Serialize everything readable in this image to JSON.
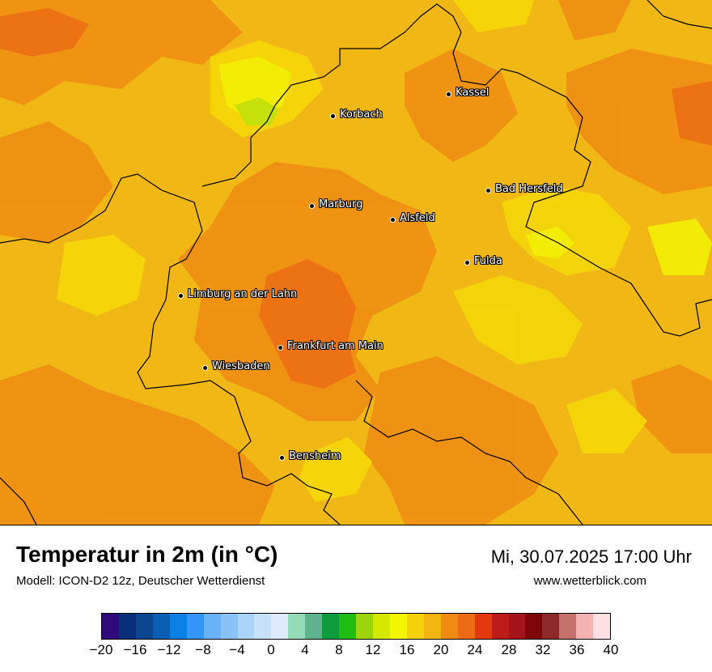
{
  "map": {
    "cities": [
      {
        "name": "Kassel"
      },
      {
        "name": "Korbach"
      },
      {
        "name": "Bad Hersfeld"
      },
      {
        "name": "Marburg"
      },
      {
        "name": "Alsfeld"
      },
      {
        "name": "Fulda"
      },
      {
        "name": "Limburg an der Lahn"
      },
      {
        "name": "Frankfurt am Main"
      },
      {
        "name": "Wiesbaden"
      },
      {
        "name": "Bensheim"
      }
    ]
  },
  "footer": {
    "title": "Temperatur in 2m (in °C)",
    "model": "Modell: ICON-D2 12z, Deutscher Wetterdienst",
    "datetime": "Mi, 30.07.2025 17:00 Uhr",
    "website": "www.wetterblick.com"
  },
  "legend": {
    "colors": [
      "#2e0a79",
      "#0a2f7a",
      "#0d4690",
      "#0a5fb4",
      "#0b81e6",
      "#3396f7",
      "#69b2f7",
      "#89c3f5",
      "#a9d4f7",
      "#c7e2f8",
      "#dfeafc",
      "#93dcb7",
      "#5fb28e",
      "#0e9b3d",
      "#1fbc14",
      "#9ed40a",
      "#d4e800",
      "#f4f600",
      "#f3d20c",
      "#f1b410",
      "#ef8a12",
      "#ec6b14",
      "#e3380e",
      "#bd1a1a",
      "#a5141b",
      "#7e0508",
      "#8c2a2a",
      "#c4706b",
      "#f5b2b0",
      "#fde0e3"
    ],
    "ticks": [
      "−20",
      "−16",
      "−12",
      "−8",
      "−4",
      "0",
      "4",
      "8",
      "12",
      "16",
      "20",
      "24",
      "28",
      "32",
      "36",
      "40"
    ]
  }
}
